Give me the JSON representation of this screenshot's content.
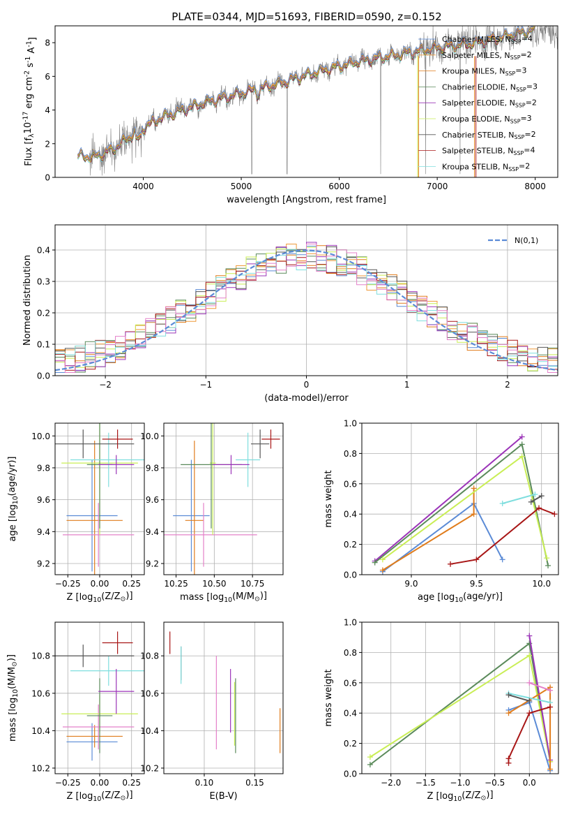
{
  "figure": {
    "title": "PLATE=0344, MJD=51693, FIBERID=0590, z=0.152"
  },
  "colors": {
    "Chabrier MILES": "#5b8bd6",
    "Salpeter MILES": "#ee9a3a",
    "Kroupa MILES": "#e07c1b",
    "Chabrier ELODIE": "#5a8a5a",
    "Salpeter ELODIE": "#9b34b8",
    "Kroupa ELODIE": "#c9ee55",
    "Chabrier STELIB": "#555555",
    "Salpeter STELIB": "#a81616",
    "Kroupa STELIB": "#7fdede",
    "pink": "#e480c9",
    "data": "#808080",
    "normal": "#5b8bd6"
  },
  "chart_data": [
    {
      "id": "spectrum",
      "type": "line",
      "xlabel": "wavelength [Angstrom, rest frame]",
      "ylabel": "Flux [f$_\\lambda$10$^{-17}$ erg cm$^{-2}$ s$^{-1}$ A$^{-1}$]",
      "xlim": [
        3100,
        8230
      ],
      "ylim": [
        0,
        9
      ],
      "xticks": [
        "4000",
        "5000",
        "6000",
        "7000",
        "8000"
      ],
      "yticks": [
        "0",
        "2",
        "4",
        "6",
        "8"
      ],
      "grid": false,
      "legend_position": "top-right",
      "legend": [
        {
          "model": "Chabrier MILES",
          "nssp": "4"
        },
        {
          "model": "Salpeter MILES",
          "nssp": "2"
        },
        {
          "model": "Kroupa MILES",
          "nssp": "3"
        },
        {
          "model": "Chabrier ELODIE",
          "nssp": "3"
        },
        {
          "model": "Salpeter ELODIE",
          "nssp": "2"
        },
        {
          "model": "Kroupa ELODIE",
          "nssp": "3"
        },
        {
          "model": "Chabrier STELIB",
          "nssp": "2"
        },
        {
          "model": "Salpeter STELIB",
          "nssp": "4"
        },
        {
          "model": "Kroupa STELIB",
          "nssp": "2"
        }
      ],
      "continuum": {
        "x": [
          3330,
          3500,
          3700,
          3950,
          4200,
          4600,
          5000,
          5400,
          5800,
          6200,
          6600,
          7000,
          7400,
          7800,
          8000
        ],
        "y": [
          1.3,
          1.2,
          1.7,
          2.8,
          3.6,
          4.4,
          5.0,
          5.6,
          6.3,
          6.9,
          7.3,
          7.7,
          8.0,
          8.5,
          8.8
        ]
      },
      "data_range": [
        3450,
        8230
      ],
      "model_range": [
        3330,
        8000
      ]
    },
    {
      "id": "residuals",
      "type": "line",
      "xlabel": "(data-model)/error",
      "ylabel": "Normed distribution",
      "xlim": [
        -2.5,
        2.5
      ],
      "ylim": [
        0,
        0.48
      ],
      "xticks": [
        -2,
        -1,
        0,
        1,
        2
      ],
      "yticks": [
        0.0,
        0.1,
        0.2,
        0.3,
        0.4
      ],
      "grid": true,
      "legend_position": "top-right",
      "legend": [
        "$\\mathcal{N}(0,1)$"
      ],
      "bin_width": 0.1,
      "normal_pdf": {
        "mean": 0,
        "sigma": 1
      }
    },
    {
      "id": "age-vs-Z",
      "type": "scatter",
      "xlabel": "Z [log$_{10}$(Z/Z$_\\odot$)]",
      "ylabel": "age  [log$_{10}$(age/yr)]",
      "xlim": [
        -0.35,
        0.35
      ],
      "ylim": [
        9.13,
        10.08
      ],
      "xticks": [
        -0.25,
        0.0,
        0.25
      ],
      "yticks": [
        9.2,
        9.4,
        9.6,
        9.8,
        10.0
      ],
      "grid": true,
      "points": [
        {
          "model": "Chabrier MILES",
          "x": -0.06,
          "xerr": 0.2,
          "y": 9.5,
          "yerr": 0.35
        },
        {
          "model": "Kroupa MILES",
          "x": -0.04,
          "xerr": 0.22,
          "y": 9.47,
          "yerr": 0.5
        },
        {
          "model": "pink",
          "x": -0.01,
          "xerr": 0.28,
          "y": 9.38,
          "yerr": 0.2
        },
        {
          "model": "Kroupa ELODIE",
          "x": 0.0,
          "xerr": 0.3,
          "y": 9.83,
          "yerr": 0.45
        },
        {
          "model": "Chabrier ELODIE",
          "x": 0.0,
          "xerr": 0.1,
          "y": 9.82,
          "yerr": 0.4
        },
        {
          "model": "Kroupa STELIB",
          "x": 0.07,
          "xerr": 0.3,
          "y": 9.85,
          "yerr": 0.17
        },
        {
          "model": "Salpeter ELODIE",
          "x": 0.13,
          "xerr": 0.14,
          "y": 9.82,
          "yerr": 0.06
        },
        {
          "model": "Chabrier STELIB",
          "x": -0.13,
          "xerr": 0.4,
          "y": 9.95,
          "yerr": 0.09
        },
        {
          "model": "Salpeter STELIB",
          "x": 0.14,
          "xerr": 0.12,
          "y": 9.98,
          "yerr": 0.06
        }
      ]
    },
    {
      "id": "age-vs-mass",
      "type": "scatter",
      "xlabel": "mass [log$_{10}$(M/M$_\\odot$)]",
      "ylabel": "",
      "xlim": [
        10.17,
        10.95
      ],
      "ylim": [
        9.13,
        10.08
      ],
      "xticks": [
        10.25,
        10.5,
        10.75
      ],
      "yticks": [
        9.2,
        9.4,
        9.6,
        9.8,
        10.0
      ],
      "grid": true,
      "points": [
        {
          "model": "Chabrier MILES",
          "x": 10.35,
          "xerr": 0.12,
          "y": 9.5,
          "yerr": 0.35
        },
        {
          "model": "Kroupa MILES",
          "x": 10.37,
          "xerr": 0.06,
          "y": 9.47,
          "yerr": 0.5
        },
        {
          "model": "pink",
          "x": 10.43,
          "xerr": 0.35,
          "y": 9.38,
          "yerr": 0.2
        },
        {
          "model": "Kroupa ELODIE",
          "x": 10.49,
          "xerr": 0.02,
          "y": 9.83,
          "yerr": 0.45
        },
        {
          "model": "Chabrier ELODIE",
          "x": 10.48,
          "xerr": 0.2,
          "y": 9.82,
          "yerr": 0.4
        },
        {
          "model": "Kroupa STELIB",
          "x": 10.72,
          "xerr": 0.08,
          "y": 9.85,
          "yerr": 0.17
        },
        {
          "model": "Salpeter ELODIE",
          "x": 10.61,
          "xerr": 0.12,
          "y": 9.82,
          "yerr": 0.06
        },
        {
          "model": "Chabrier STELIB",
          "x": 10.8,
          "xerr": 0.06,
          "y": 9.95,
          "yerr": 0.09
        },
        {
          "model": "Salpeter STELIB",
          "x": 10.87,
          "xerr": 0.06,
          "y": 9.98,
          "yerr": 0.06
        }
      ]
    },
    {
      "id": "weight-vs-age",
      "type": "line",
      "xlabel": "age  [log$_{10}$(age/yr)]",
      "ylabel": "mass weight",
      "xlim": [
        8.62,
        10.13
      ],
      "ylim": [
        0,
        1
      ],
      "xticks": [
        9.0,
        9.5,
        10.0
      ],
      "yticks": [
        0.0,
        0.2,
        0.4,
        0.6,
        0.8,
        1.0
      ],
      "grid": true,
      "series": [
        {
          "model": "Chabrier MILES",
          "x": [
            8.78,
            9.48,
            9.7
          ],
          "y": [
            0.02,
            0.47,
            0.1
          ]
        },
        {
          "model": "Kroupa MILES",
          "x": [
            8.78,
            9.48,
            9.48
          ],
          "y": [
            0.03,
            0.4,
            0.57
          ]
        },
        {
          "model": "Salpeter ELODIE",
          "x": [
            8.72,
            9.85
          ],
          "y": [
            0.09,
            0.91
          ]
        },
        {
          "model": "Chabrier ELODIE",
          "x": [
            8.72,
            9.85,
            10.05
          ],
          "y": [
            0.08,
            0.86,
            0.06
          ]
        },
        {
          "model": "Kroupa ELODIE",
          "x": [
            8.78,
            9.85,
            10.04
          ],
          "y": [
            0.1,
            0.78,
            0.11
          ]
        },
        {
          "model": "Kroupa STELIB",
          "x": [
            9.7,
            9.95
          ],
          "y": [
            0.47,
            0.53
          ]
        },
        {
          "model": "Chabrier STELIB",
          "x": [
            9.92,
            10.0
          ],
          "y": [
            0.48,
            0.52
          ]
        },
        {
          "model": "Salpeter STELIB",
          "x": [
            9.3,
            9.5,
            9.98,
            10.1
          ],
          "y": [
            0.07,
            0.1,
            0.44,
            0.4
          ]
        }
      ]
    },
    {
      "id": "mass-vs-Z",
      "type": "scatter",
      "xlabel": "Z [log$_{10}$(Z/Z$_\\odot$)]",
      "ylabel": "mass [log$_{10}$(M/M$_\\odot$)]",
      "xlim": [
        -0.35,
        0.35
      ],
      "ylim": [
        10.17,
        10.98
      ],
      "xticks": [
        -0.25,
        0.0,
        0.25
      ],
      "yticks": [
        10.2,
        10.4,
        10.6,
        10.8
      ],
      "grid": true,
      "points": [
        {
          "model": "Chabrier MILES",
          "x": -0.06,
          "xerr": 0.2,
          "y": 10.34,
          "yerr": 0.1
        },
        {
          "model": "Kroupa MILES",
          "x": -0.04,
          "xerr": 0.22,
          "y": 10.37,
          "yerr": 0.06
        },
        {
          "model": "pink",
          "x": -0.01,
          "xerr": 0.28,
          "y": 10.42,
          "yerr": 0.12
        },
        {
          "model": "Kroupa ELODIE",
          "x": 0.0,
          "xerr": 0.3,
          "y": 10.49,
          "yerr": 0.1
        },
        {
          "model": "Chabrier ELODIE",
          "x": 0.0,
          "xerr": 0.1,
          "y": 10.48,
          "yerr": 0.2
        },
        {
          "model": "Kroupa STELIB",
          "x": 0.07,
          "xerr": 0.3,
          "y": 10.72,
          "yerr": 0.08
        },
        {
          "model": "Salpeter ELODIE",
          "x": 0.13,
          "xerr": 0.14,
          "y": 10.61,
          "yerr": 0.12
        },
        {
          "model": "Chabrier STELIB",
          "x": -0.13,
          "xerr": 0.4,
          "y": 10.8,
          "yerr": 0.06
        },
        {
          "model": "Salpeter STELIB",
          "x": 0.14,
          "xerr": 0.12,
          "y": 10.87,
          "yerr": 0.06
        }
      ]
    },
    {
      "id": "mass-vs-EBV",
      "type": "scatter",
      "xlabel": "E(B-V)",
      "ylabel": "",
      "xlim": [
        0.06,
        0.178
      ],
      "ylim": [
        10.17,
        10.98
      ],
      "xticks": [
        0.1,
        0.15
      ],
      "yticks": [
        10.2,
        10.4,
        10.6,
        10.8
      ],
      "grid": true,
      "points": [
        {
          "model": "Salpeter STELIB",
          "x": 0.066,
          "y": 10.87,
          "yerr": 0.06
        },
        {
          "model": "Chabrier STELIB",
          "x": 0.077,
          "y": 10.76,
          "yerr": 0.09
        },
        {
          "model": "Kroupa STELIB",
          "x": 0.077,
          "y": 10.75,
          "yerr": 0.1
        },
        {
          "model": "pink",
          "x": 0.112,
          "y": 10.55,
          "yerr": 0.25
        },
        {
          "model": "Salpeter ELODIE",
          "x": 0.126,
          "y": 10.56,
          "yerr": 0.17
        },
        {
          "model": "Kroupa ELODIE",
          "x": 0.13,
          "y": 10.49,
          "yerr": 0.17
        },
        {
          "model": "Chabrier ELODIE",
          "x": 0.131,
          "y": 10.48,
          "yerr": 0.2
        },
        {
          "model": "Kroupa MILES",
          "x": 0.175,
          "y": 10.4,
          "yerr": 0.12
        }
      ]
    },
    {
      "id": "weight-vs-Z",
      "type": "line",
      "xlabel": "Z [log$_{10}$(Z/Z$_\\odot$)]",
      "ylabel": "mass weight",
      "xlim": [
        -2.42,
        0.42
      ],
      "ylim": [
        0,
        1
      ],
      "xticks": [
        -2.0,
        -1.5,
        -1.0,
        -0.5,
        0.0
      ],
      "yticks": [
        0.0,
        0.2,
        0.4,
        0.6,
        0.8,
        1.0
      ],
      "grid": true,
      "series": [
        {
          "model": "Chabrier ELODIE",
          "x": [
            -2.3,
            0.0,
            0.3
          ],
          "y": [
            0.06,
            0.86,
            0.08
          ]
        },
        {
          "model": "Kroupa ELODIE",
          "x": [
            -2.3,
            0.0,
            0.3
          ],
          "y": [
            0.11,
            0.78,
            0.08
          ]
        },
        {
          "model": "Salpeter ELODIE",
          "x": [
            0.0,
            0.3
          ],
          "y": [
            0.91,
            0.09
          ]
        },
        {
          "model": "Chabrier MILES",
          "x": [
            -0.3,
            0.0,
            0.3
          ],
          "y": [
            0.42,
            0.47,
            0.02
          ]
        },
        {
          "model": "Kroupa MILES",
          "x": [
            -0.3,
            0.3,
            0.3
          ],
          "y": [
            0.4,
            0.57,
            0.03
          ]
        },
        {
          "model": "Kroupa STELIB",
          "x": [
            -0.3,
            0.3
          ],
          "y": [
            0.53,
            0.47
          ]
        },
        {
          "model": "Chabrier STELIB",
          "x": [
            -0.3,
            0.0
          ],
          "y": [
            0.52,
            0.48
          ]
        },
        {
          "model": "Salpeter STELIB",
          "x": [
            -0.3,
            -0.3,
            0.0,
            0.3
          ],
          "y": [
            0.07,
            0.1,
            0.4,
            0.44
          ]
        },
        {
          "model": "pink",
          "x": [
            0.0,
            0.3
          ],
          "y": [
            0.6,
            0.55
          ]
        }
      ]
    }
  ]
}
